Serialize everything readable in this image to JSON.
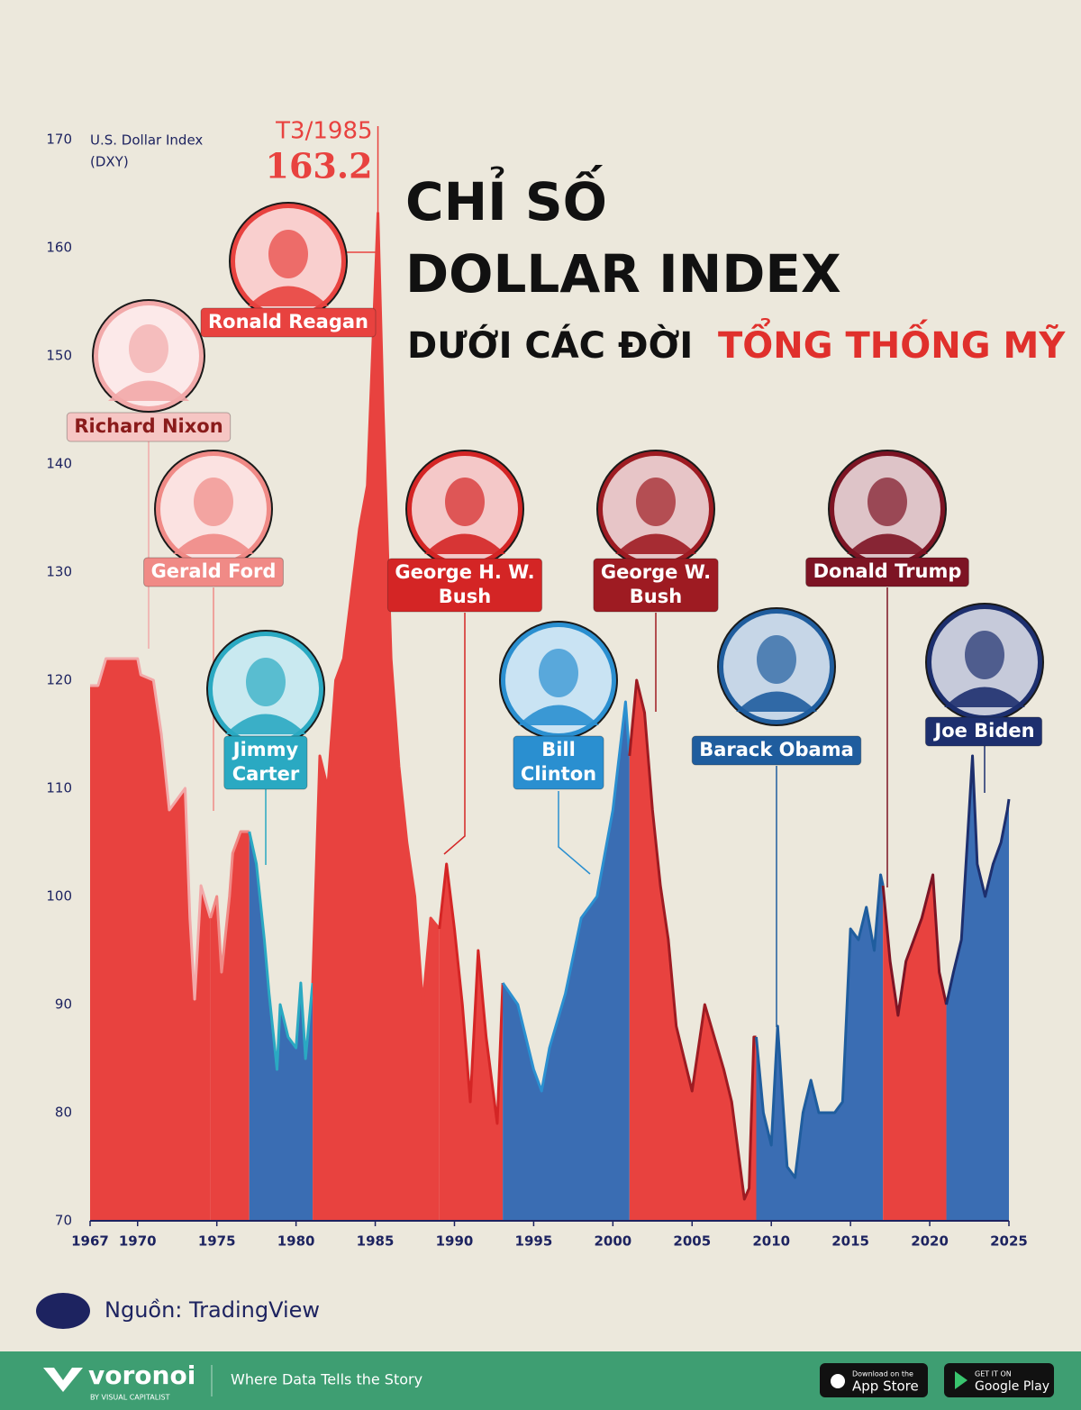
{
  "chart_data": {
    "type": "area",
    "title": [
      "CHỈ SỐ",
      "DOLLAR INDEX",
      "DƯỚI CÁC ĐỜI",
      "TỔNG THỐNG MỸ"
    ],
    "y_axis_label": [
      "U.S. Dollar Index",
      "(DXY)"
    ],
    "annotation": {
      "label": "T3/1985",
      "value": 163.2,
      "x": 1985.17
    },
    "xlim": [
      1967,
      2025
    ],
    "xticks": [
      1967,
      1970,
      1975,
      1980,
      1985,
      1990,
      1995,
      2000,
      2005,
      2010,
      2015,
      2020,
      2025
    ],
    "ylim": [
      70,
      170
    ],
    "yticks": [
      70,
      80,
      90,
      100,
      110,
      120,
      130,
      140,
      150,
      160,
      170
    ],
    "series": [
      {
        "name": "Richard Nixon",
        "fill": "#e8423f",
        "color": "#f2a9a9",
        "x": [
          1967,
          1967.5,
          1968,
          1969,
          1970,
          1970.2,
          1971,
          1971.5,
          1972,
          1973,
          1973.3,
          1973.6,
          1974,
          1974.6
        ],
        "values": [
          119.5,
          119.5,
          122,
          122,
          122,
          120.5,
          120,
          115,
          108,
          110,
          98,
          90.5,
          101,
          98
        ]
      },
      {
        "name": "Gerald Ford",
        "fill": "#e8423f",
        "color": "#f08a86",
        "x": [
          1974.6,
          1975,
          1975.3,
          1975.8,
          1976,
          1976.5,
          1977.05
        ],
        "values": [
          98,
          100,
          93,
          100,
          104,
          106,
          106
        ]
      },
      {
        "name": "Jimmy Carter",
        "fill": "#3a6db3",
        "color": "#2aa9c2",
        "x": [
          1977.05,
          1977.5,
          1978,
          1978.3,
          1978.8,
          1979,
          1979.5,
          1980,
          1980.3,
          1980.6,
          1981.05
        ],
        "values": [
          106,
          103,
          96,
          91,
          84,
          90,
          87,
          86,
          92,
          85,
          92
        ]
      },
      {
        "name": "Ronald Reagan",
        "fill": "#e8423f",
        "color": "#e8423f",
        "x": [
          1981.05,
          1981.5,
          1982,
          1982.5,
          1983,
          1983.5,
          1984,
          1984.5,
          1985.17,
          1985.5,
          1986,
          1986.5,
          1987,
          1987.5,
          1988,
          1988.5,
          1989.05
        ],
        "values": [
          92,
          113,
          110,
          120,
          122,
          128,
          134,
          138,
          163.2,
          145,
          122,
          112,
          105,
          100,
          90,
          98,
          97
        ]
      },
      {
        "name": "George H. W. Bush",
        "fill": "#e8423f",
        "color": "#d42525",
        "x": [
          1989.05,
          1989.5,
          1990,
          1990.5,
          1991,
          1991.5,
          1992,
          1992.7,
          1993.05
        ],
        "values": [
          97,
          103,
          97,
          90,
          81,
          95,
          87,
          79,
          92
        ]
      },
      {
        "name": "Bill Clinton",
        "fill": "#3a6db3",
        "color": "#2a8fd0",
        "x": [
          1993.05,
          1994,
          1995,
          1995.5,
          1996,
          1997,
          1998,
          1999,
          2000,
          2000.8,
          2001.05
        ],
        "values": [
          92,
          90,
          84,
          82,
          86,
          91,
          98,
          100,
          108,
          118,
          113
        ]
      },
      {
        "name": "George W. Bush",
        "fill": "#e8423f",
        "color": "#9e1b22",
        "x": [
          2001.05,
          2001.5,
          2002,
          2002.5,
          2003,
          2003.5,
          2004,
          2005,
          2005.8,
          2006,
          2007,
          2007.5,
          2008.3,
          2008.6,
          2008.9,
          2009.05
        ],
        "values": [
          113,
          120,
          117,
          108,
          101,
          96,
          88,
          82,
          90,
          89,
          84,
          81,
          72,
          73,
          87,
          87
        ]
      },
      {
        "name": "Barack Obama",
        "fill": "#3a6db3",
        "color": "#1f5d9e",
        "x": [
          2009.05,
          2009.5,
          2010,
          2010.4,
          2011,
          2011.5,
          2012,
          2012.5,
          2013,
          2014,
          2014.5,
          2015,
          2015.5,
          2016,
          2016.5,
          2016.9,
          2017.05
        ],
        "values": [
          87,
          80,
          77,
          88,
          75,
          74,
          80,
          83,
          80,
          80,
          81,
          97,
          96,
          99,
          95,
          102,
          101
        ]
      },
      {
        "name": "Donald Trump",
        "fill": "#e8423f",
        "color": "#7d1424",
        "x": [
          2017.05,
          2017.5,
          2018,
          2018.5,
          2019,
          2019.5,
          2020.2,
          2020.6,
          2021.05
        ],
        "values": [
          101,
          94,
          89,
          94,
          96,
          98,
          102,
          93,
          90
        ]
      },
      {
        "name": "Joe Biden",
        "fill": "#3a6db3",
        "color": "#1d2f6e",
        "x": [
          2021.05,
          2021.5,
          2022,
          2022.7,
          2023,
          2023.5,
          2024,
          2024.5,
          2024.9,
          2025
        ],
        "values": [
          90,
          93,
          96,
          113,
          103,
          100,
          103,
          105,
          108,
          109
        ]
      }
    ]
  },
  "source": "Nguồn: TradingView",
  "footer": {
    "brand": "voronoi",
    "brand_sub": "BY VISUAL CAPITALIST",
    "tagline": "Where Data Tells the Story",
    "app_store": [
      "Download on the",
      "App Store"
    ],
    "google_play": [
      "GET IT ON",
      "Google Play"
    ]
  }
}
